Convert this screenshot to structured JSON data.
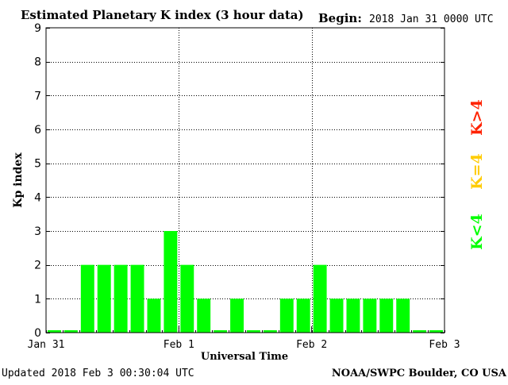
{
  "header": {
    "title": "Estimated Planetary K index (3 hour data)",
    "begin_label": "Begin:",
    "begin_value": "2018 Jan 31 0000 UTC"
  },
  "footer": {
    "updated": "Updated 2018 Feb  3 00:30:04 UTC",
    "source": "NOAA/SWPC Boulder, CO USA"
  },
  "legend": {
    "items": [
      {
        "text": "K>4",
        "color": "#ff2200"
      },
      {
        "text": "K=4",
        "color": "#ffcc00"
      },
      {
        "text": "K<4",
        "color": "#00ff00"
      }
    ]
  },
  "chart_data": {
    "type": "bar",
    "title": "Estimated Planetary K index (3 hour data)",
    "xlabel": "Universal Time",
    "ylabel": "Kp index",
    "ylim": [
      0,
      9
    ],
    "yticks": [
      "0",
      "1",
      "2",
      "3",
      "4",
      "5",
      "6",
      "7",
      "8",
      "9"
    ],
    "xticks": [
      "Jan 31",
      "Feb 1",
      "Feb 2",
      "Feb 3"
    ],
    "bar_color": "#00ff00",
    "grid": true,
    "values": [
      0,
      0,
      2,
      2,
      2,
      2,
      1,
      3,
      2,
      1,
      0,
      1,
      0,
      0,
      1,
      1,
      2,
      1,
      1,
      1,
      1,
      1,
      0,
      0
    ]
  }
}
